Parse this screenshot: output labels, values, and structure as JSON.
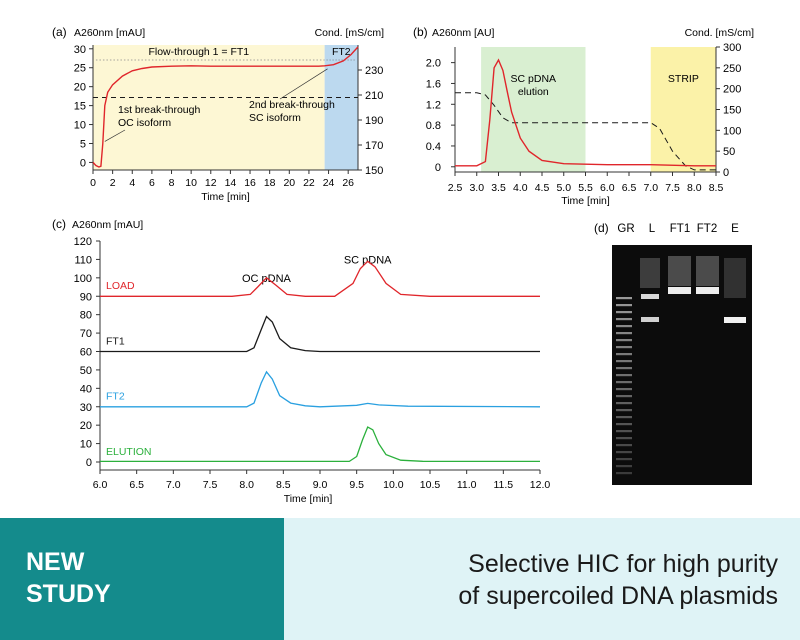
{
  "footer": {
    "badge_line1": "NEW",
    "badge_line2": "STUDY",
    "headline_line1": "Selective HIC for high purity",
    "headline_line2": "of supercoiled DNA plasmids",
    "badge_color": "#148b8c",
    "headline_bg": "#dff3f6"
  },
  "colors": {
    "red": "#e0262b",
    "black": "#1a1a1a",
    "blue": "#2aa0e0",
    "green": "#2bb03c",
    "yellow_band": "#fdf7d4",
    "blue_band": "#bcd9ef",
    "green_band": "#d9efd1",
    "strip_band": "#fbf2a8"
  },
  "chart_data": [
    {
      "panel": "(a)",
      "type": "line",
      "ylabel": "A260nm [mAU]",
      "y2label": "Cond. [mS/cm]",
      "xlabel": "Time [min]",
      "xlim": [
        0,
        27
      ],
      "ylim": [
        -2,
        31
      ],
      "y2lim": [
        150,
        250
      ],
      "xticks": [
        0,
        2,
        4,
        6,
        8,
        10,
        12,
        14,
        16,
        18,
        20,
        22,
        24,
        26
      ],
      "yticks": [
        0,
        5,
        10,
        15,
        20,
        25,
        30
      ],
      "y2ticks": [
        150,
        170,
        190,
        210,
        230
      ],
      "regions": [
        {
          "label": "Flow-through 1 = FT1",
          "x": [
            0,
            23.6
          ],
          "color": "#fdf7d4"
        },
        {
          "label": "FT2",
          "x": [
            23.6,
            27
          ],
          "color": "#bcd9ef"
        }
      ],
      "series": [
        {
          "style": "absorbance",
          "color": "#e0262b",
          "x": [
            0,
            0.3,
            0.6,
            0.8,
            1.0,
            1.2,
            1.5,
            2,
            3,
            4,
            5,
            6,
            8,
            10,
            12,
            14,
            16,
            18,
            20,
            22,
            23,
            23.6,
            24.5,
            25.5,
            26.3,
            27
          ],
          "y": [
            0,
            -0.8,
            -1.2,
            -1.0,
            5,
            15,
            18.5,
            20.5,
            22.8,
            24.2,
            24.8,
            25.2,
            25.4,
            25.5,
            25.4,
            25.4,
            25.4,
            25.4,
            25.4,
            25.4,
            25.4,
            25.5,
            25.8,
            26.8,
            28.5,
            30.5
          ]
        },
        {
          "style": "conductivity",
          "color": "#1a1a1a",
          "x": [
            0,
            2,
            5,
            10,
            15,
            20,
            23.6,
            27
          ],
          "y2": [
            208,
            208,
            208,
            208,
            208,
            208,
            208,
            208
          ]
        }
      ],
      "annotations": [
        {
          "lines": [
            "1st break-through",
            "OC isoform"
          ],
          "x": 1.0,
          "y": 5
        },
        {
          "lines": [
            "2nd break-through",
            "SC isoform"
          ],
          "x": 24.0,
          "y": 25.5
        }
      ]
    },
    {
      "panel": "(b)",
      "type": "line",
      "ylabel": "A260nm [AU]",
      "y2label": "Cond. [mS/cm]",
      "xlabel": "Time [min]",
      "xlim": [
        2.5,
        8.5
      ],
      "ylim": [
        -0.1,
        2.3
      ],
      "y2lim": [
        0,
        300
      ],
      "xticks": [
        2.5,
        3.0,
        3.5,
        4.0,
        4.5,
        5.0,
        5.5,
        6.0,
        6.5,
        7.0,
        7.5,
        8.0,
        8.5
      ],
      "yticks": [
        0,
        0.4,
        0.8,
        1.2,
        1.6,
        2.0
      ],
      "y2ticks": [
        0,
        50,
        100,
        150,
        200,
        250,
        300
      ],
      "regions": [
        {
          "label": "SC pDNA elution",
          "x": [
            3.1,
            5.5
          ],
          "color": "#d9efd1"
        },
        {
          "label": "STRIP",
          "x": [
            7.0,
            8.5
          ],
          "color": "#fbf2a8"
        }
      ],
      "series": [
        {
          "style": "absorbance",
          "color": "#e0262b",
          "x": [
            2.5,
            3.0,
            3.2,
            3.3,
            3.4,
            3.5,
            3.6,
            3.7,
            3.8,
            4.0,
            4.2,
            4.5,
            5.0,
            5.5,
            6.0,
            7.0,
            8.0,
            8.5
          ],
          "y": [
            0.02,
            0.02,
            0.1,
            0.9,
            1.9,
            2.05,
            1.85,
            1.45,
            1.05,
            0.55,
            0.3,
            0.12,
            0.06,
            0.05,
            0.04,
            0.04,
            0.02,
            0.02
          ]
        },
        {
          "style": "conductivity",
          "color": "#1a1a1a",
          "x": [
            2.5,
            3.0,
            3.2,
            3.4,
            3.6,
            3.8,
            4.0,
            5.0,
            6.0,
            7.0,
            7.2,
            7.5,
            7.8,
            8.0,
            8.5
          ],
          "y2": [
            190,
            190,
            185,
            160,
            130,
            118,
            118,
            118,
            118,
            118,
            105,
            50,
            15,
            5,
            5
          ]
        }
      ]
    },
    {
      "panel": "(c)",
      "type": "line",
      "ylabel": "A260nm [mAU]",
      "xlabel": "Time [min]",
      "xlim": [
        6.0,
        12.0
      ],
      "ylim": [
        0,
        120
      ],
      "xticks": [
        "6.0",
        "6.5",
        "7.0",
        "7.5",
        "8.0",
        "8.5",
        "9.0",
        "9.5",
        "10.0",
        "10.5",
        "11.0",
        "11.5",
        "12.0"
      ],
      "yticks": [
        0,
        10,
        20,
        30,
        40,
        50,
        60,
        70,
        80,
        90,
        100,
        110,
        120
      ],
      "peak_labels": [
        {
          "text": "OC pDNA",
          "x": 8.27,
          "y": 100
        },
        {
          "text": "SC pDNA",
          "x": 9.65,
          "y": 110
        }
      ],
      "series": [
        {
          "name": "LOAD",
          "color": "#e0262b",
          "label_y": 96,
          "x": [
            6.0,
            7.8,
            8.05,
            8.15,
            8.27,
            8.4,
            8.55,
            8.8,
            9.2,
            9.45,
            9.55,
            9.65,
            9.75,
            9.9,
            10.1,
            10.5,
            12.0
          ],
          "y": [
            90,
            90,
            91,
            95,
            100,
            96,
            91,
            90,
            90,
            97,
            105,
            109,
            106,
            97,
            91,
            90,
            90
          ]
        },
        {
          "name": "FT1",
          "color": "#1a1a1a",
          "label_y": 66,
          "x": [
            6.0,
            8.0,
            8.1,
            8.2,
            8.27,
            8.35,
            8.45,
            8.6,
            8.8,
            9.0,
            12.0
          ],
          "y": [
            60,
            60,
            62,
            72,
            79,
            76,
            67,
            62,
            60.5,
            60,
            60
          ]
        },
        {
          "name": "FT2",
          "color": "#2aa0e0",
          "label_y": 36,
          "x": [
            6.0,
            8.0,
            8.1,
            8.2,
            8.27,
            8.35,
            8.45,
            8.6,
            8.8,
            9.0,
            9.5,
            9.65,
            9.8,
            10.2,
            12.0
          ],
          "y": [
            30,
            30,
            32,
            43,
            49,
            45,
            36,
            32,
            30.5,
            30,
            30.8,
            31.8,
            31,
            30.3,
            30
          ]
        },
        {
          "name": "ELUTION",
          "color": "#2bb03c",
          "label_y": 6,
          "x": [
            6.0,
            9.4,
            9.5,
            9.58,
            9.65,
            9.72,
            9.8,
            9.9,
            10.1,
            10.4,
            12.0
          ],
          "y": [
            0.3,
            0.3,
            3,
            12,
            19,
            17.5,
            10,
            4,
            1,
            0.4,
            0.3
          ]
        }
      ]
    }
  ],
  "panel_d": {
    "label": "(d)",
    "lanes": [
      "GR",
      "L",
      "FT1",
      "FT2",
      "E"
    ]
  }
}
